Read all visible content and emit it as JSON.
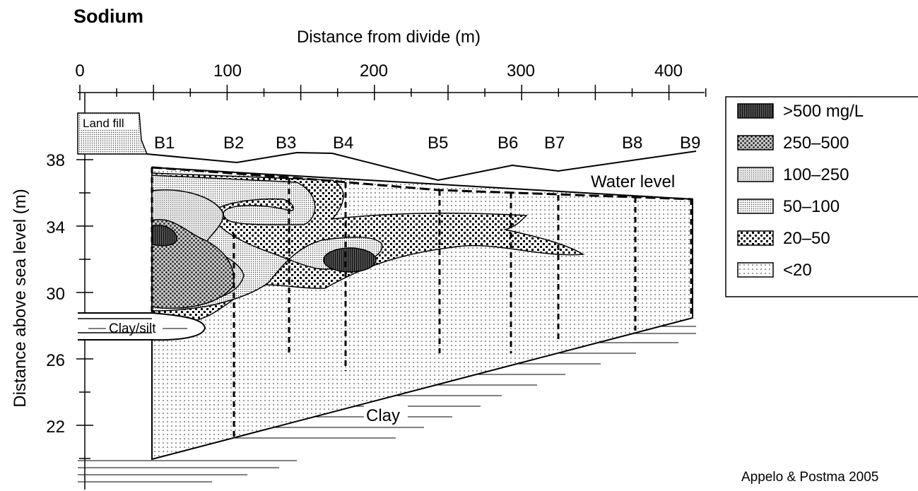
{
  "title": "Sodium",
  "x_axis": {
    "label": "Distance from divide (m)",
    "ticks": [
      "0",
      "100",
      "200",
      "300",
      "400"
    ]
  },
  "y_axis": {
    "label": "Distance above sea level (m)",
    "ticks": [
      "38",
      "34",
      "30",
      "26",
      "22"
    ]
  },
  "wells": [
    "B1",
    "B2",
    "B3",
    "B4",
    "B5",
    "B6",
    "B7",
    "B8",
    "B9"
  ],
  "annotations": {
    "land_fill": "Land fill",
    "water_level": "Water level",
    "clay_silt": "Clay/silt",
    "clay": "Clay"
  },
  "legend": {
    "items": [
      {
        "label": ">500 mg/L",
        "pattern": "p500"
      },
      {
        "label": "250–500",
        "pattern": "p250"
      },
      {
        "label": "100–250",
        "pattern": "p100"
      },
      {
        "label": "50–100",
        "pattern": "p50"
      },
      {
        "label": "20–50",
        "pattern": "p20"
      },
      {
        "label": "<20",
        "pattern": "p0"
      }
    ]
  },
  "credit": "Appelo & Postma 2005"
}
